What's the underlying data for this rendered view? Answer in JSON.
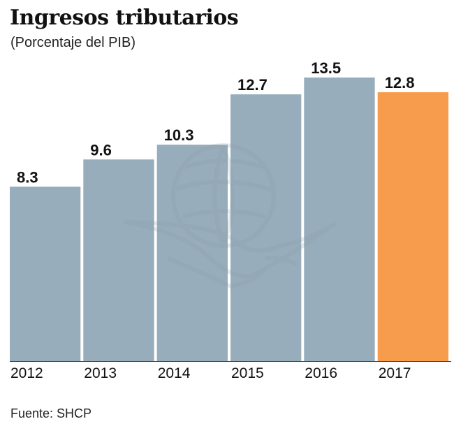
{
  "chart_data": {
    "type": "bar",
    "title": "Ingresos tributarios",
    "subtitle": "(Porcentaje del PIB)",
    "source": "Fuente: SHCP",
    "categories": [
      "2012",
      "2013",
      "2014",
      "2015",
      "2016",
      "2017"
    ],
    "values": [
      8.3,
      9.6,
      10.3,
      12.7,
      13.5,
      12.8
    ],
    "value_labels": [
      "8.3",
      "9.6",
      "10.3",
      "12.7",
      "13.5",
      "12.8"
    ],
    "highlight_index": 5,
    "xlabel": "",
    "ylabel": "",
    "ylim": [
      0,
      13.5
    ],
    "grid": false,
    "legend": "none"
  },
  "colors": {
    "bar": "#97adbb",
    "highlight": "#f79c4c",
    "axis": "#333333",
    "watermark": "#8a9aa6"
  },
  "watermark": {
    "icon": "eagle-globe-icon"
  }
}
